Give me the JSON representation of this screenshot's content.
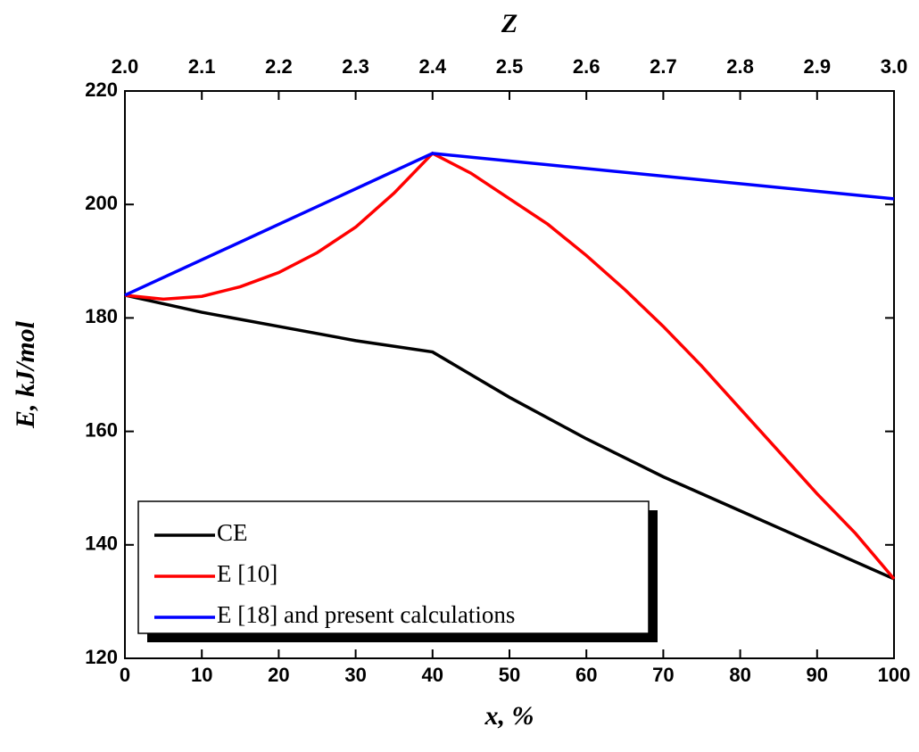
{
  "chart_data": {
    "type": "line",
    "x_label": "x, %",
    "y_label": "E, kJ/mol",
    "x2_label": "Z",
    "xlim": [
      0,
      100
    ],
    "xticks": [
      0,
      10,
      20,
      30,
      40,
      50,
      60,
      70,
      80,
      90,
      100
    ],
    "ylim": [
      120,
      220
    ],
    "yticks": [
      120,
      140,
      160,
      180,
      200,
      220
    ],
    "x2lim": [
      2,
      3
    ],
    "x2ticks": [
      {
        "value": 2,
        "label": "2.0"
      },
      2.1,
      2.2,
      2.3,
      2.4,
      2.5,
      2.6,
      2.7,
      2.8,
      2.9,
      {
        "value": 3,
        "label": "3.0"
      }
    ],
    "legend": "lower left",
    "series": [
      {
        "name": "CE",
        "color": "#000000",
        "x": [
          0,
          10,
          20,
          30,
          40,
          50,
          60,
          70,
          80,
          90,
          100
        ],
        "values": [
          184,
          181,
          178.5,
          176,
          174,
          166,
          158.7,
          152,
          146,
          140,
          134
        ]
      },
      {
        "name": "E [10]",
        "color": "#ff0000",
        "x": [
          0,
          5,
          10,
          15,
          20,
          25,
          30,
          35,
          40,
          45,
          50,
          55,
          60,
          65,
          70,
          75,
          80,
          85,
          90,
          95,
          100
        ],
        "values": [
          184,
          183.3,
          183.8,
          185.5,
          188,
          191.5,
          196,
          202,
          209,
          205.5,
          201,
          196.5,
          191,
          185,
          178.5,
          171.5,
          164,
          156.5,
          149,
          142,
          134
        ]
      },
      {
        "name": "E [18] and present calculations",
        "color": "#0000ff",
        "x": [
          0,
          40,
          100
        ],
        "values": [
          184,
          209,
          201
        ]
      }
    ]
  }
}
